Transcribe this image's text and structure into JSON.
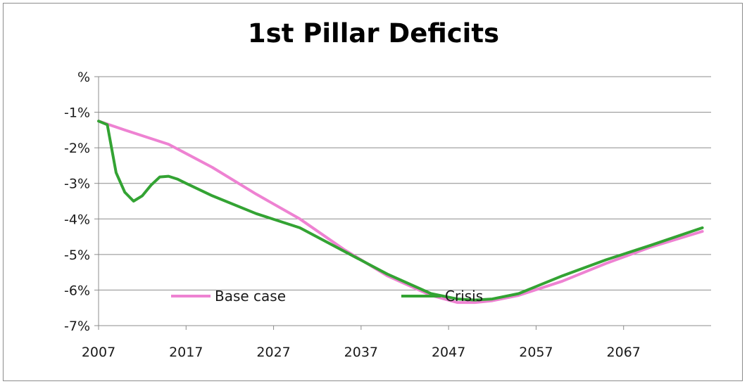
{
  "chart_data": {
    "type": "line",
    "title": "1st Pillar Deficits",
    "xlabel": "",
    "ylabel": "",
    "x_ticks": [
      "2007",
      "2017",
      "2027",
      "2037",
      "2047",
      "2057",
      "2067"
    ],
    "y_ticks": [
      "%",
      "-1%",
      "-2%",
      "-3%",
      "-4%",
      "-5%",
      "-6%",
      "-7%"
    ],
    "xlim": [
      2007,
      2077
    ],
    "ylim": [
      -7,
      0
    ],
    "grid": "horizontal",
    "legend": "inside-bottom",
    "series": [
      {
        "name": "Base case",
        "color": "#ee82d2",
        "x": [
          2007,
          2010,
          2015,
          2020,
          2025,
          2030,
          2035,
          2040,
          2045,
          2048,
          2050,
          2052,
          2055,
          2060,
          2065,
          2070,
          2076
        ],
        "y": [
          -1.25,
          -1.5,
          -1.9,
          -2.55,
          -3.3,
          -4.0,
          -4.85,
          -5.6,
          -6.15,
          -6.35,
          -6.35,
          -6.3,
          -6.15,
          -5.75,
          -5.25,
          -4.8,
          -4.35
        ]
      },
      {
        "name": "Crisis",
        "color": "#33a333",
        "x": [
          2007,
          2008,
          2009,
          2010,
          2011,
          2012,
          2013,
          2014,
          2015,
          2016,
          2017,
          2020,
          2025,
          2030,
          2035,
          2040,
          2045,
          2048,
          2050,
          2052,
          2055,
          2060,
          2065,
          2070,
          2076
        ],
        "y": [
          -1.25,
          -1.35,
          -2.7,
          -3.25,
          -3.5,
          -3.35,
          -3.05,
          -2.82,
          -2.8,
          -2.88,
          -3.0,
          -3.35,
          -3.85,
          -4.25,
          -4.9,
          -5.55,
          -6.1,
          -6.25,
          -6.28,
          -6.25,
          -6.1,
          -5.6,
          -5.15,
          -4.75,
          -4.25
        ]
      }
    ]
  }
}
